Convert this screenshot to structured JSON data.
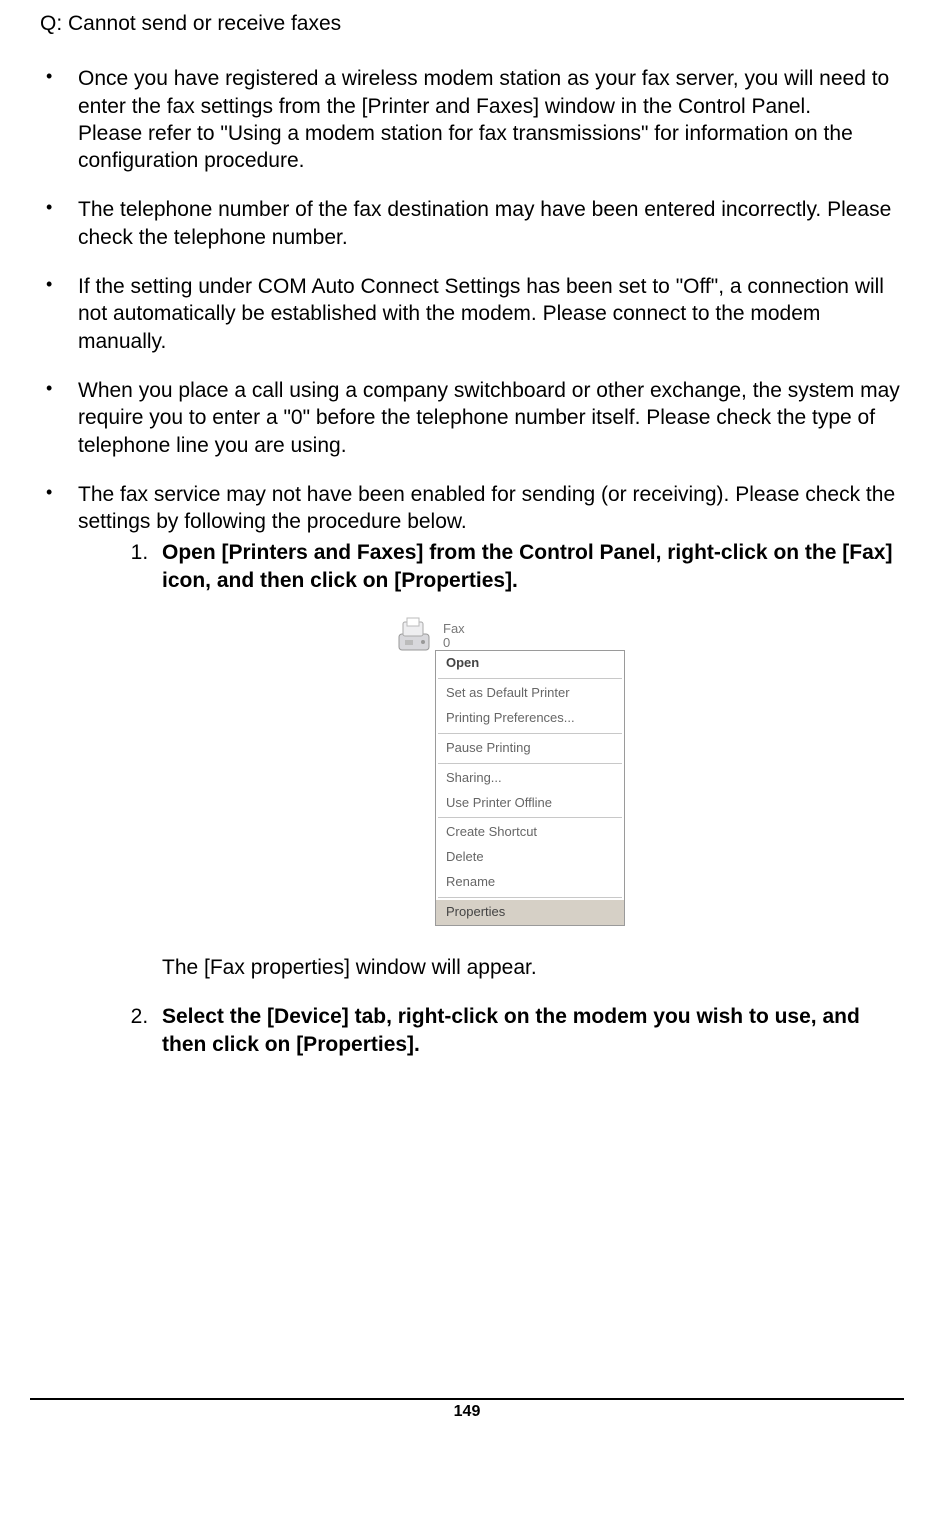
{
  "question": "Q: Cannot send or receive faxes",
  "bullets": [
    {
      "text": "Once you have registered a wireless modem station as your fax server, you will need to enter the fax settings from the [Printer and Faxes] window in the Control Panel.\nPlease refer to \"Using a modem station for fax transmissions\" for information on the configuration procedure."
    },
    {
      "text": "The telephone number of the fax destination may have been entered incorrectly. Please check the telephone number."
    },
    {
      "text": "If the setting under COM Auto Connect Settings has been set to \"Off\", a connection will not automatically be established with the modem. Please connect to the modem manually."
    },
    {
      "text": "When you place a call using a company switchboard or other exchange, the system may require you to enter a \"0\" before the telephone number itself. Please check the type of telephone line you are using."
    },
    {
      "text": "The fax service may not have been enabled for sending (or receiving). Please check the settings by following the procedure below."
    }
  ],
  "steps": [
    {
      "num": "1",
      "bold": "Open [Printers and Faxes] from the Control Panel, right-click on the [Fax] icon, and then click on [Properties]."
    },
    {
      "num": "2",
      "bold": "Select the [Device] tab, right-click on the modem you wish to use, and then click on [Properties]."
    }
  ],
  "figure": {
    "icon_label_line1": "Fax",
    "icon_label_line2": "0",
    "menu_items": [
      {
        "label": "Open",
        "bold": true
      },
      {
        "sep": true
      },
      {
        "label": "Set as Default Printer"
      },
      {
        "label": "Printing Preferences..."
      },
      {
        "sep": true
      },
      {
        "label": "Pause Printing"
      },
      {
        "sep": true
      },
      {
        "label": "Sharing..."
      },
      {
        "label": "Use Printer Offline"
      },
      {
        "sep": true
      },
      {
        "label": "Create Shortcut"
      },
      {
        "label": "Delete"
      },
      {
        "label": "Rename"
      },
      {
        "sep": true
      },
      {
        "label": "Properties",
        "highlight": true
      }
    ]
  },
  "after_figure_text": "The [Fax properties] window will appear.",
  "page_number": "149"
}
